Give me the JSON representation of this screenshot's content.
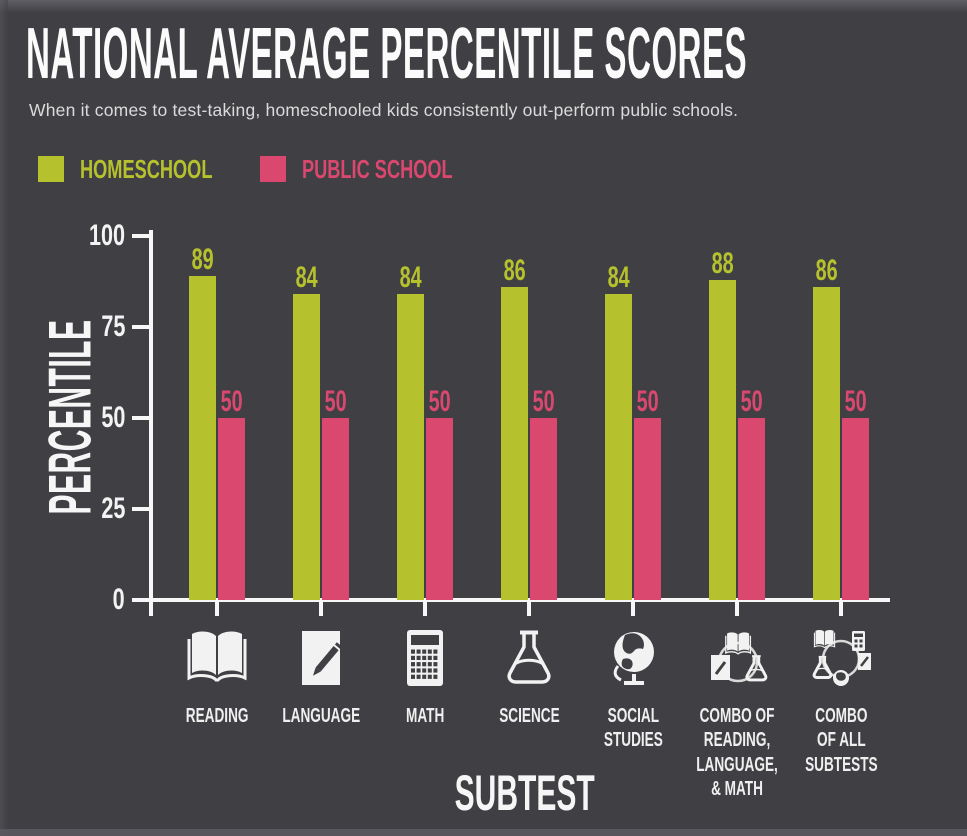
{
  "title": "NATIONAL AVERAGE PERCENTILE SCORES",
  "subtitle": "When it comes to test-taking, homeschooled kids consistently out-perform public schools.",
  "colors": {
    "background": "#403f43",
    "homeschool": "#b6c22d",
    "public_school": "#da476f",
    "axis": "#f7f7f7",
    "text": "#efefef"
  },
  "legend": [
    {
      "label": "HOMESCHOOL",
      "color": "#b6c22d"
    },
    {
      "label": "PUBLIC SCHOOL",
      "color": "#da476f"
    }
  ],
  "chart_data": {
    "type": "bar",
    "title": "NATIONAL AVERAGE PERCENTILE SCORES",
    "xlabel": "SUBTEST",
    "ylabel": "PERCENTILE",
    "ylim": [
      0,
      100
    ],
    "yticks": [
      100,
      75,
      50,
      25,
      0
    ],
    "grid": false,
    "legend_position": "top-left",
    "categories": [
      "Reading",
      "Language",
      "Math",
      "Science",
      "Social Studies",
      "Combo of Reading, Language, & Math",
      "Combo of All Subtests"
    ],
    "category_label_lines": [
      [
        "READING"
      ],
      [
        "LANGUAGE"
      ],
      [
        "MATH"
      ],
      [
        "SCIENCE"
      ],
      [
        "SOCIAL",
        "STUDIES"
      ],
      [
        "COMBO OF",
        "READING,",
        "LANGUAGE,",
        "& MATH"
      ],
      [
        "COMBO",
        "OF ALL",
        "SUBTESTS"
      ]
    ],
    "category_icons": [
      "open-book-icon",
      "paper-and-pen-icon",
      "calculator-icon",
      "flask-icon",
      "globe-icon",
      "combo-reading-language-math-icon",
      "combo-all-subtests-icon"
    ],
    "series": [
      {
        "name": "HOMESCHOOL",
        "color": "#b6c22d",
        "values": [
          89,
          84,
          84,
          86,
          84,
          88,
          86
        ]
      },
      {
        "name": "PUBLIC SCHOOL",
        "color": "#da476f",
        "values": [
          50,
          50,
          50,
          50,
          50,
          50,
          50
        ]
      }
    ]
  }
}
